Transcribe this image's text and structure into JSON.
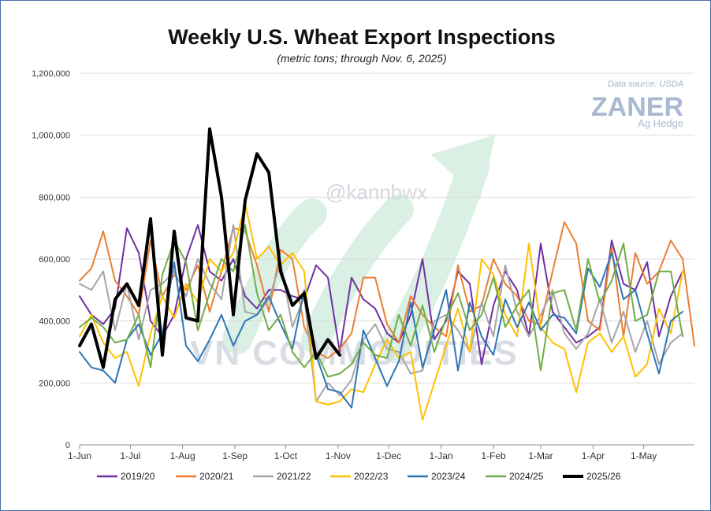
{
  "title": "Weekly U.S. Wheat Export Inspections",
  "subtitle": "(metric tons; through Nov. 6, 2025)",
  "source": "Data source: USDA",
  "logo": {
    "name": "ZANER",
    "tagline": "Ag Hedge"
  },
  "watermarks": [
    "@kannbwx",
    "VN COMMODITIES"
  ],
  "chart_data": {
    "type": "line",
    "y_ticks": [
      "0",
      "200,000",
      "400,000",
      "600,000",
      "800,000",
      "1,000,000",
      "1,200,000"
    ],
    "y_tick_values": [
      0,
      200000,
      400000,
      600000,
      800000,
      1000000,
      1200000
    ],
    "ylim": [
      0,
      1200000
    ],
    "x_ticks": [
      "1-Jun",
      "1-Jul",
      "1-Aug",
      "1-Sep",
      "1-Oct",
      "1-Nov",
      "1-Dec",
      "1-Jan",
      "1-Feb",
      "1-Mar",
      "1-Apr",
      "1-May"
    ],
    "x_tick_weeks": [
      0,
      4.29,
      8.71,
      13.14,
      17.43,
      21.86,
      26.14,
      30.57,
      35,
      39,
      43.43,
      47.71
    ],
    "xlim_weeks": [
      0,
      52
    ],
    "grid": "horizontal",
    "legend_position": "bottom",
    "series": [
      {
        "name": "2019/20",
        "color": "#7030a0",
        "width": 2,
        "values": [
          480,
          420,
          390,
          440,
          700,
          620,
          400,
          350,
          420,
          600,
          710,
          560,
          530,
          600,
          480,
          440,
          500,
          500,
          480,
          470,
          580,
          540,
          300,
          540,
          470,
          440,
          360,
          330,
          420,
          600,
          340,
          400,
          560,
          520,
          260,
          450,
          560,
          500,
          350,
          650,
          430,
          380,
          330,
          350,
          380,
          660,
          520,
          500,
          590,
          350,
          480,
          560
        ]
      },
      {
        "name": "2020/21",
        "color": "#ed7d31",
        "width": 2,
        "values": [
          530,
          570,
          690,
          530,
          480,
          420,
          660,
          480,
          550,
          500,
          580,
          430,
          560,
          700,
          690,
          580,
          430,
          630,
          600,
          380,
          300,
          280,
          310,
          360,
          540,
          540,
          390,
          330,
          480,
          420,
          380,
          350,
          580,
          430,
          450,
          600,
          520,
          480,
          400,
          390,
          560,
          720,
          650,
          400,
          370,
          640,
          350,
          620,
          520,
          560,
          660,
          600,
          320
        ]
      },
      {
        "name": "2021/22",
        "color": "#a5a5a5",
        "width": 2,
        "values": [
          520,
          500,
          560,
          370,
          520,
          340,
          500,
          520,
          560,
          480,
          600,
          520,
          470,
          710,
          430,
          420,
          470,
          590,
          380,
          480,
          140,
          200,
          160,
          210,
          340,
          390,
          310,
          300,
          230,
          240,
          400,
          420,
          370,
          300,
          460,
          350,
          580,
          430,
          350,
          420,
          500,
          360,
          310,
          360,
          470,
          330,
          430,
          300,
          400,
          260,
          330,
          360
        ]
      },
      {
        "name": "2022/23",
        "color": "#ffc000",
        "width": 2,
        "values": [
          350,
          420,
          330,
          280,
          300,
          190,
          360,
          480,
          410,
          520,
          460,
          600,
          560,
          620,
          780,
          600,
          640,
          580,
          620,
          560,
          140,
          130,
          140,
          180,
          170,
          260,
          340,
          280,
          300,
          80,
          200,
          320,
          440,
          300,
          600,
          550,
          420,
          350,
          650,
          380,
          330,
          310,
          170,
          330,
          360,
          300,
          350,
          220,
          260,
          440,
          360,
          560
        ]
      },
      {
        "name": "2023/24",
        "color": "#2e75b6",
        "width": 2,
        "values": [
          300,
          250,
          240,
          200,
          340,
          390,
          290,
          360,
          590,
          320,
          270,
          340,
          420,
          320,
          400,
          420,
          480,
          390,
          310,
          500,
          290,
          180,
          170,
          120,
          370,
          280,
          190,
          270,
          460,
          250,
          370,
          500,
          240,
          460,
          350,
          290,
          470,
          380,
          460,
          370,
          420,
          410,
          360,
          570,
          510,
          620,
          470,
          500,
          360,
          230,
          400,
          430
        ]
      },
      {
        "name": "2024/25",
        "color": "#70ad47",
        "width": 2,
        "values": [
          380,
          410,
          380,
          330,
          340,
          420,
          250,
          550,
          660,
          590,
          370,
          490,
          600,
          560,
          710,
          490,
          370,
          420,
          300,
          250,
          300,
          220,
          230,
          260,
          330,
          290,
          280,
          420,
          320,
          450,
          300,
          410,
          490,
          370,
          420,
          540,
          380,
          450,
          500,
          240,
          490,
          500,
          370,
          600,
          460,
          530,
          650,
          400,
          420,
          560,
          560,
          350
        ]
      },
      {
        "name": "2025/26",
        "color": "#000000",
        "width": 4,
        "values": [
          320,
          390,
          250,
          470,
          520,
          450,
          730,
          290,
          690,
          410,
          400,
          1020,
          800,
          420,
          790,
          940,
          880,
          560,
          450,
          490,
          280,
          340,
          290
        ]
      }
    ]
  }
}
